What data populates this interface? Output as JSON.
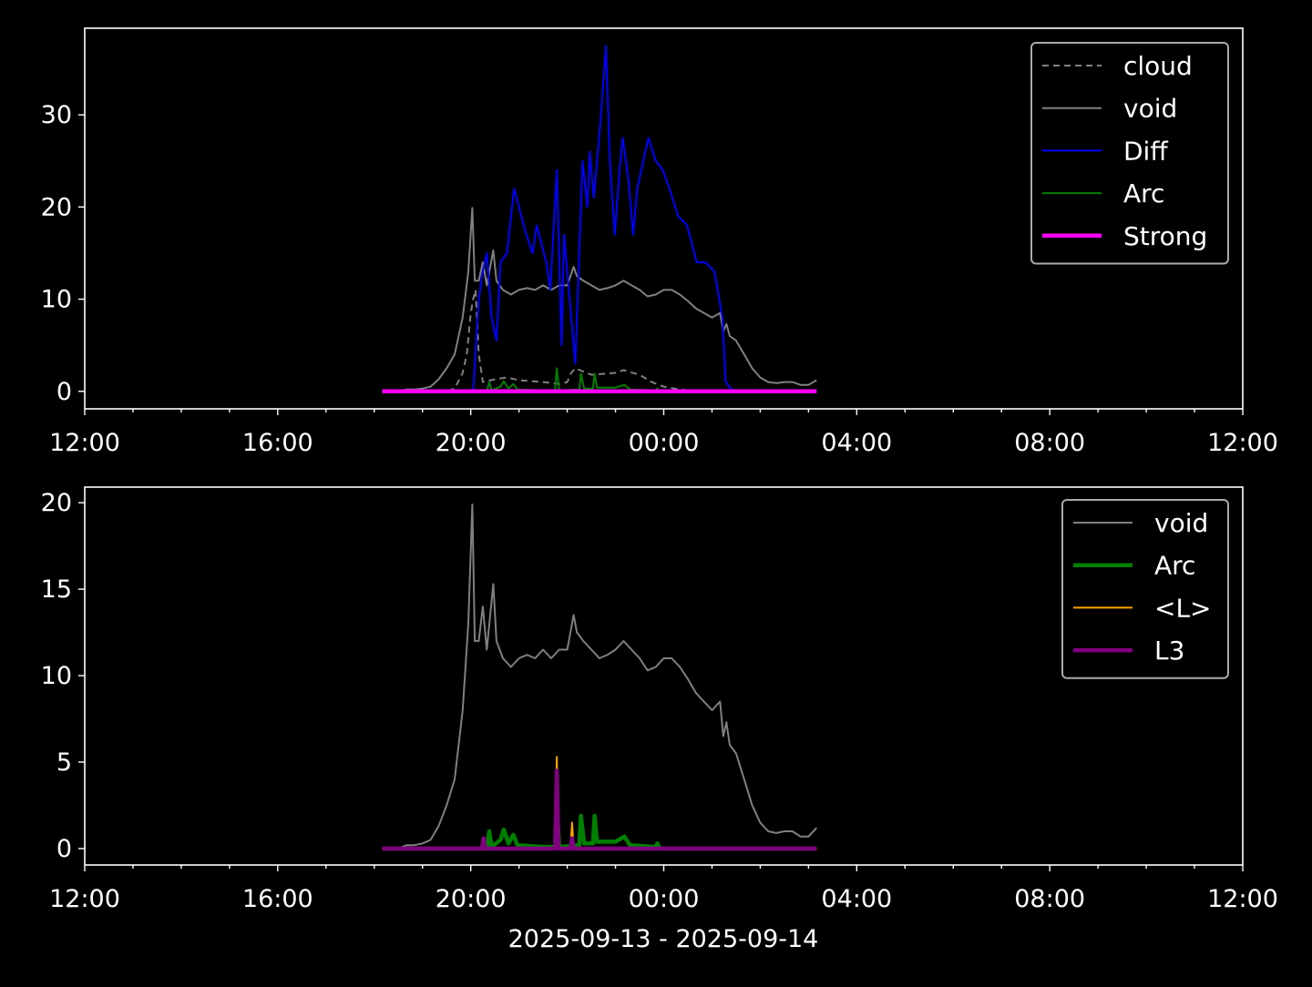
{
  "chart_data": [
    {
      "type": "line",
      "xlim": [
        "12:00",
        "12:00"
      ],
      "ylim": [
        -1.9,
        39.4
      ],
      "xticks": [
        "12:00",
        "16:00",
        "20:00",
        "00:00",
        "04:00",
        "08:00",
        "12:00"
      ],
      "yticks": [
        0,
        10,
        20,
        30
      ],
      "legend_position": "upper right",
      "grid": false,
      "series": [
        {
          "name": "cloud",
          "color": "#808080",
          "style": "dashed",
          "points": [
            [
              "18:10",
              0
            ],
            [
              "19:30",
              0
            ],
            [
              "19:40",
              0.3
            ],
            [
              "19:50",
              2
            ],
            [
              "19:55",
              4
            ],
            [
              "20:00",
              8.5
            ],
            [
              "20:03",
              10
            ],
            [
              "20:06",
              11
            ],
            [
              "20:10",
              4
            ],
            [
              "20:15",
              1
            ],
            [
              "20:30",
              1.3
            ],
            [
              "20:45",
              1.5
            ],
            [
              "21:00",
              1.2
            ],
            [
              "21:30",
              1
            ],
            [
              "21:50",
              0.8
            ],
            [
              "22:00",
              1
            ],
            [
              "22:05",
              2
            ],
            [
              "22:10",
              2.5
            ],
            [
              "22:30",
              1.8
            ],
            [
              "23:00",
              2
            ],
            [
              "23:10",
              2.3
            ],
            [
              "23:30",
              1.8
            ],
            [
              "23:45",
              1
            ],
            [
              "00:00",
              0.5
            ],
            [
              "00:20",
              0.2
            ],
            [
              "00:40",
              0
            ],
            [
              "03:10",
              0
            ]
          ]
        },
        {
          "name": "void",
          "color": "#808080",
          "style": "solid",
          "ref": "void"
        },
        {
          "name": "Diff",
          "color": "#0000ff",
          "style": "solid",
          "points": [
            [
              "18:10",
              0
            ],
            [
              "20:03",
              0
            ],
            [
              "20:10",
              10
            ],
            [
              "20:15",
              13
            ],
            [
              "20:20",
              15
            ],
            [
              "20:26",
              8
            ],
            [
              "20:32",
              5.5
            ],
            [
              "20:37",
              14
            ],
            [
              "20:45",
              15
            ],
            [
              "20:54",
              22
            ],
            [
              "21:00",
              20
            ],
            [
              "21:09",
              17
            ],
            [
              "21:17",
              15
            ],
            [
              "21:22",
              18
            ],
            [
              "21:34",
              14
            ],
            [
              "21:39",
              11
            ],
            [
              "21:47",
              24
            ],
            [
              "21:53",
              5
            ],
            [
              "21:56",
              17
            ],
            [
              "22:05",
              8
            ],
            [
              "22:10",
              3
            ],
            [
              "22:19",
              25
            ],
            [
              "22:25",
              20
            ],
            [
              "22:28",
              26
            ],
            [
              "22:33",
              21
            ],
            [
              "22:42",
              30
            ],
            [
              "22:48",
              37.5
            ],
            [
              "22:53",
              25
            ],
            [
              "22:59",
              17
            ],
            [
              "23:05",
              24
            ],
            [
              "23:09",
              27.5
            ],
            [
              "23:16",
              23
            ],
            [
              "23:22",
              17
            ],
            [
              "23:27",
              22
            ],
            [
              "23:41",
              27.5
            ],
            [
              "23:50",
              25
            ],
            [
              "23:59",
              24
            ],
            [
              "00:07",
              22
            ],
            [
              "00:18",
              19
            ],
            [
              "00:29",
              18
            ],
            [
              "00:41",
              14
            ],
            [
              "00:52",
              14
            ],
            [
              "01:03",
              13
            ],
            [
              "01:13",
              8
            ],
            [
              "01:17",
              1
            ],
            [
              "01:26",
              0
            ],
            [
              "03:10",
              0
            ]
          ]
        },
        {
          "name": "Arc",
          "color": "#008000",
          "style": "solid",
          "ref": "arc"
        },
        {
          "name": "Strong",
          "color": "#ff00ff",
          "style": "thick",
          "points": [
            [
              "18:10",
              0
            ],
            [
              "03:10",
              0
            ]
          ]
        }
      ]
    },
    {
      "type": "line",
      "xlim": [
        "12:00",
        "12:00"
      ],
      "ylim": [
        -0.95,
        20.9
      ],
      "xticks": [
        "12:00",
        "16:00",
        "20:00",
        "00:00",
        "04:00",
        "08:00",
        "12:00"
      ],
      "yticks": [
        0,
        5,
        10,
        15,
        20
      ],
      "xlabel": "2025-09-13 - 2025-09-14",
      "legend_position": "upper right",
      "grid": false,
      "series": [
        {
          "name": "void",
          "color": "#808080",
          "style": "solid",
          "ref": "void"
        },
        {
          "name": "Arc",
          "color": "#008000",
          "style": "thick",
          "ref": "arc"
        },
        {
          "name": "<L>",
          "color": "#ffa500",
          "style": "solid",
          "points": [
            [
              "18:10",
              0
            ],
            [
              "21:45",
              0
            ],
            [
              "21:47",
              5.3
            ],
            [
              "21:49",
              0
            ],
            [
              "22:04",
              0
            ],
            [
              "22:06",
              1.5
            ],
            [
              "22:08",
              0
            ],
            [
              "03:10",
              0
            ]
          ]
        },
        {
          "name": "L3",
          "color": "#800080",
          "style": "thick",
          "points": [
            [
              "18:10",
              0
            ],
            [
              "20:14",
              0
            ],
            [
              "20:16",
              0.6
            ],
            [
              "20:18",
              0
            ],
            [
              "21:45",
              0
            ],
            [
              "21:47",
              4.5
            ],
            [
              "21:49",
              0
            ],
            [
              "22:04",
              0
            ],
            [
              "22:06",
              0.6
            ],
            [
              "22:08",
              0
            ],
            [
              "03:10",
              0
            ]
          ]
        }
      ]
    }
  ],
  "shared_series": {
    "void": [
      [
        "18:10",
        0
      ],
      [
        "18:30",
        0
      ],
      [
        "18:40",
        0.2
      ],
      [
        "18:50",
        0.2
      ],
      [
        "19:00",
        0.3
      ],
      [
        "19:10",
        0.5
      ],
      [
        "19:20",
        1.3
      ],
      [
        "19:30",
        2.5
      ],
      [
        "19:40",
        4
      ],
      [
        "19:50",
        8
      ],
      [
        "19:57",
        13
      ],
      [
        "20:02",
        19.9
      ],
      [
        "20:05",
        12
      ],
      [
        "20:10",
        12
      ],
      [
        "20:15",
        14
      ],
      [
        "20:20",
        11.5
      ],
      [
        "20:28",
        15.3
      ],
      [
        "20:32",
        12
      ],
      [
        "20:40",
        11
      ],
      [
        "20:50",
        10.5
      ],
      [
        "21:00",
        11
      ],
      [
        "21:10",
        11.2
      ],
      [
        "21:20",
        11
      ],
      [
        "21:30",
        11.5
      ],
      [
        "21:40",
        11
      ],
      [
        "21:50",
        11.5
      ],
      [
        "22:00",
        11.5
      ],
      [
        "22:08",
        13.5
      ],
      [
        "22:12",
        12.5
      ],
      [
        "22:20",
        12
      ],
      [
        "22:30",
        11.5
      ],
      [
        "22:40",
        11
      ],
      [
        "22:50",
        11.2
      ],
      [
        "23:00",
        11.5
      ],
      [
        "23:10",
        12
      ],
      [
        "23:20",
        11.5
      ],
      [
        "23:30",
        11
      ],
      [
        "23:40",
        10.3
      ],
      [
        "23:50",
        10.5
      ],
      [
        "00:00",
        11
      ],
      [
        "00:10",
        11
      ],
      [
        "00:20",
        10.5
      ],
      [
        "00:30",
        9.8
      ],
      [
        "00:40",
        9
      ],
      [
        "00:50",
        8.5
      ],
      [
        "01:00",
        8
      ],
      [
        "01:10",
        8.5
      ],
      [
        "01:14",
        6.5
      ],
      [
        "01:18",
        7.3
      ],
      [
        "01:22",
        6
      ],
      [
        "01:30",
        5.5
      ],
      [
        "01:40",
        4
      ],
      [
        "01:50",
        2.5
      ],
      [
        "02:00",
        1.5
      ],
      [
        "02:10",
        1
      ],
      [
        "02:20",
        0.9
      ],
      [
        "02:30",
        1
      ],
      [
        "02:40",
        1
      ],
      [
        "02:50",
        0.7
      ],
      [
        "03:00",
        0.7
      ],
      [
        "03:10",
        1.2
      ]
    ],
    "arc": [
      [
        "18:10",
        0
      ],
      [
        "20:20",
        0
      ],
      [
        "20:23",
        1.0
      ],
      [
        "20:26",
        0.1
      ],
      [
        "20:37",
        0.5
      ],
      [
        "20:41",
        1.1
      ],
      [
        "20:47",
        0.3
      ],
      [
        "20:53",
        0.8
      ],
      [
        "20:58",
        0.2
      ],
      [
        "21:30",
        0.1
      ],
      [
        "21:45",
        0.1
      ],
      [
        "21:47",
        2.5
      ],
      [
        "21:50",
        0.1
      ],
      [
        "22:15",
        0.2
      ],
      [
        "22:17",
        1.9
      ],
      [
        "22:21",
        0.3
      ],
      [
        "22:32",
        0.3
      ],
      [
        "22:34",
        1.9
      ],
      [
        "22:37",
        0.4
      ],
      [
        "23:00",
        0.4
      ],
      [
        "23:11",
        0.7
      ],
      [
        "23:18",
        0.2
      ],
      [
        "23:50",
        0.1
      ],
      [
        "23:52",
        0.3
      ],
      [
        "23:55",
        0
      ],
      [
        "03:10",
        0
      ]
    ]
  }
}
